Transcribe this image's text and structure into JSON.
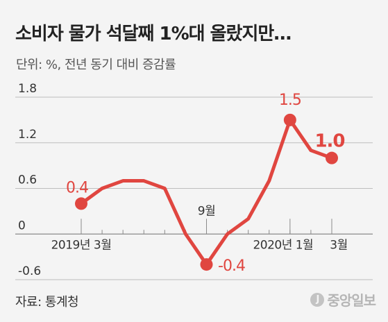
{
  "header": {
    "title": "소비자 물가 석달째 1%대 올랐지만…",
    "unit": "단위: %, 전년 동기 대비 증감률"
  },
  "footer": {
    "source": "자료: 통계청",
    "logo_text": "중앙일보"
  },
  "chart_data": {
    "type": "line",
    "x": [
      "2019-03",
      "2019-04",
      "2019-05",
      "2019-06",
      "2019-07",
      "2019-08",
      "2019-09",
      "2019-10",
      "2019-11",
      "2019-12",
      "2020-01",
      "2020-02",
      "2020-03"
    ],
    "series": [
      {
        "values": [
          0.4,
          0.6,
          0.7,
          0.7,
          0.6,
          0.0,
          -0.4,
          0.0,
          0.2,
          0.7,
          1.5,
          1.1,
          1.0
        ]
      }
    ],
    "ylim": [
      -0.6,
      1.8
    ],
    "yticks": [
      "1.8",
      "1.2",
      "0.6",
      "0",
      "-0.6"
    ],
    "tick_marks": [
      {
        "index": 0,
        "label": "2019년 3월"
      },
      {
        "index": 6,
        "label": "9월"
      },
      {
        "index": 10,
        "label": "2020년 1월"
      },
      {
        "index": 12,
        "label": "3월"
      }
    ],
    "point_labels": [
      {
        "index": 0,
        "label": "0.4"
      },
      {
        "index": 6,
        "label": "-0.4"
      },
      {
        "index": 10,
        "label": "1.5"
      },
      {
        "index": 12,
        "label": "1.0"
      }
    ],
    "line_color": "#e04640",
    "grid": true
  }
}
